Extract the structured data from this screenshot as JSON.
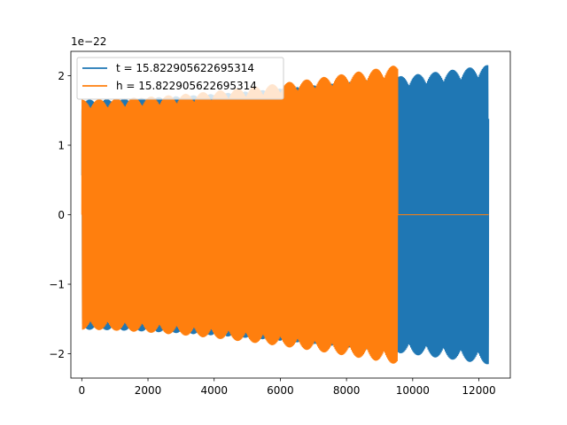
{
  "chart_data": {
    "type": "line",
    "title": "",
    "xlabel": "",
    "ylabel": "",
    "y_offset_label": "1e−22",
    "y_scale": 1e-22,
    "xlim": [
      -330,
      12950
    ],
    "ylim": [
      -2.35,
      2.35
    ],
    "x_ticks": [
      0,
      2000,
      4000,
      6000,
      8000,
      10000,
      12000
    ],
    "x_tick_labels": [
      "0",
      "2000",
      "4000",
      "6000",
      "8000",
      "10000",
      "12000"
    ],
    "y_ticks": [
      -2,
      -1,
      0,
      1,
      2
    ],
    "y_tick_labels": [
      "−2",
      "−1",
      "0",
      "1",
      "2"
    ],
    "grid": false,
    "legend_position": "upper-left",
    "series": [
      {
        "name": "t = 15.822905622695314",
        "color": "#1f77b4",
        "x_range": [
          0,
          12300
        ],
        "amplitude_start": 1.65,
        "amplitude_end": 2.15,
        "signal_end": 12300
      },
      {
        "name": "h = 15.822905622695314",
        "color": "#ff7f0e",
        "x_range": [
          0,
          12300
        ],
        "amplitude_start": 1.65,
        "amplitude_end": 2.15,
        "signal_end": 9550
      }
    ]
  }
}
